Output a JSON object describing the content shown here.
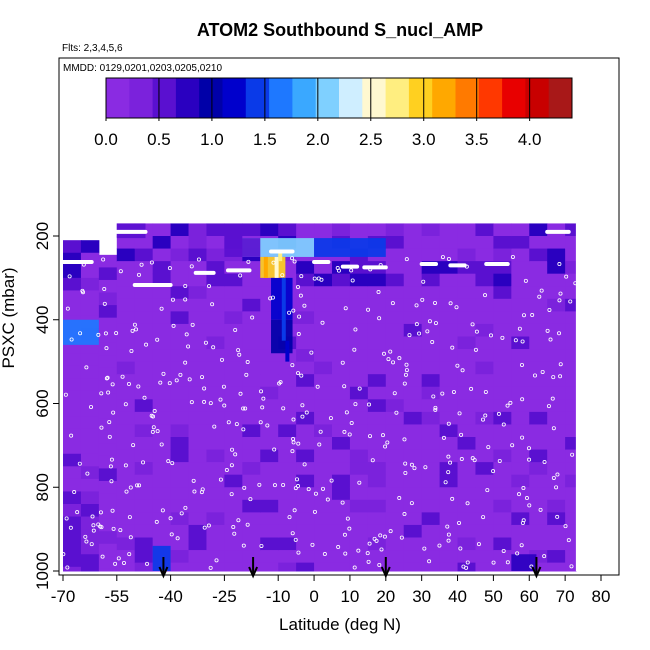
{
  "chart_data": {
    "type": "heatmap",
    "title": "ATOM2 Southbound S_nucl_AMP",
    "subtitle_flights": "Flts: 2,3,4,5,6",
    "subtitle_dates": "MMDD: 0129,0201,0203,0205,0210",
    "xlabel": "Latitude (deg N)",
    "ylabel": "PSXC (mbar)",
    "xlim": [
      -70,
      80
    ],
    "ylim": [
      1000,
      100
    ],
    "x_ticks": [
      -70,
      -55,
      -40,
      -25,
      -10,
      0,
      10,
      20,
      30,
      40,
      50,
      60,
      70,
      80
    ],
    "y_ticks": [
      200,
      400,
      600,
      800,
      1000
    ],
    "colorbar": {
      "min": 0.0,
      "max": 4.4,
      "ticks": [
        0.0,
        0.5,
        1.0,
        1.5,
        2.0,
        2.5,
        3.0,
        3.5,
        4.0
      ],
      "colors": [
        "#8a2be2",
        "#7b22dc",
        "#5a10d0",
        "#2a00c0",
        "#0000a8",
        "#0000cc",
        "#0a3ae8",
        "#1e78ff",
        "#3aa8ff",
        "#7fd0ff",
        "#cfeeff",
        "#fff8d0",
        "#ffee80",
        "#ffd020",
        "#ffa800",
        "#ff7a00",
        "#ff3800",
        "#e80000",
        "#c80000",
        "#a81818"
      ]
    },
    "cells": [
      {
        "lat": [
          -55,
          73
        ],
        "p": [
          170,
          205
        ],
        "v": 0.35
      },
      {
        "lat": [
          -55,
          -47
        ],
        "p": [
          170,
          205
        ],
        "v": 0.6
      },
      {
        "lat": [
          -20,
          0
        ],
        "p": [
          205,
          250
        ],
        "v": 2.0
      },
      {
        "lat": [
          0,
          20
        ],
        "p": [
          205,
          250
        ],
        "v": 1.5
      },
      {
        "lat": [
          -25,
          -15
        ],
        "p": [
          205,
          250
        ],
        "v": 0.5
      },
      {
        "lat": [
          -15,
          -8
        ],
        "p": [
          250,
          300
        ],
        "v": 3.0
      },
      {
        "lat": [
          -12,
          -6
        ],
        "p": [
          300,
          400
        ],
        "v": 1.2
      },
      {
        "lat": [
          -12,
          -6
        ],
        "p": [
          400,
          480
        ],
        "v": 1.0
      },
      {
        "lat": [
          -70,
          -60
        ],
        "p": [
          400,
          460
        ],
        "v": 1.7
      },
      {
        "lat": [
          -45,
          -40
        ],
        "p": [
          940,
          1000
        ],
        "v": 1.4
      },
      {
        "lat": [
          55,
          62
        ],
        "p": [
          960,
          1000
        ],
        "v": 0.7
      }
    ],
    "flight_track_markers": "white circles along flight paths",
    "sonde_arrows_lat": [
      -42,
      -17,
      20,
      62
    ]
  }
}
